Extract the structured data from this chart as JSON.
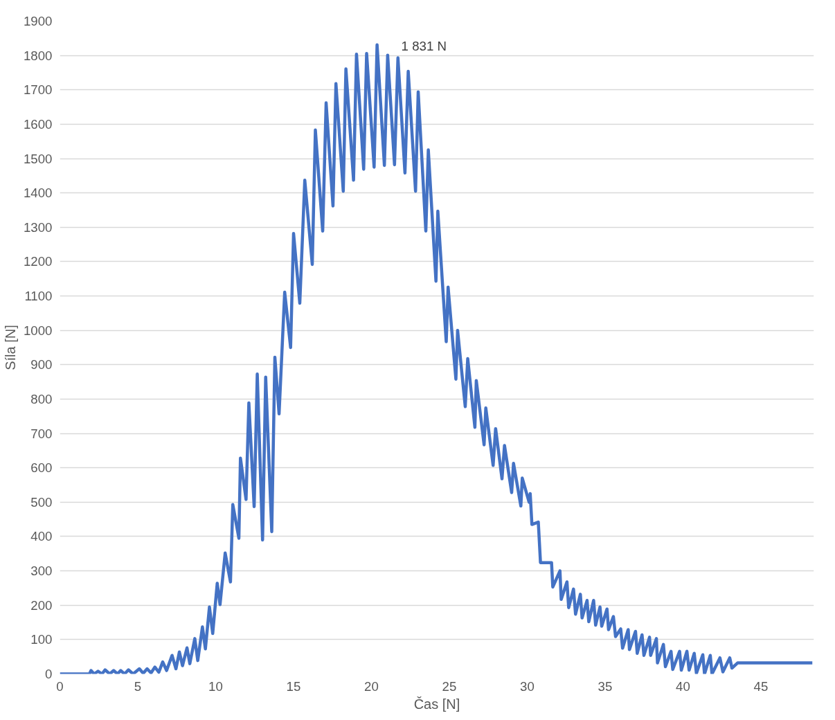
{
  "chart_data": {
    "type": "line",
    "xlabel": "Čas [N]",
    "ylabel": "Síla [N]",
    "x": [
      0,
      1.9,
      2.0,
      2.2,
      2.45,
      2.7,
      2.9,
      3.2,
      3.45,
      3.7,
      3.9,
      4.15,
      4.4,
      4.7,
      5.1,
      5.35,
      5.6,
      5.85,
      6.1,
      6.35,
      6.6,
      6.85,
      7.2,
      7.45,
      7.67,
      7.87,
      8.16,
      8.34,
      8.66,
      8.85,
      9.15,
      9.34,
      9.6,
      9.81,
      10.1,
      10.28,
      10.61,
      10.95,
      11.1,
      11.49,
      11.59,
      11.95,
      12.13,
      12.47,
      12.67,
      13.01,
      13.21,
      13.6,
      13.8,
      14.07,
      14.43,
      14.81,
      15.0,
      15.4,
      15.72,
      16.2,
      16.4,
      16.87,
      17.09,
      17.53,
      17.72,
      18.19,
      18.36,
      18.85,
      19.04,
      19.5,
      19.69,
      20.17,
      20.36,
      20.83,
      21.04,
      21.48,
      21.7,
      22.15,
      22.36,
      22.83,
      23.0,
      23.49,
      23.65,
      24.14,
      24.26,
      24.8,
      24.92,
      25.42,
      25.53,
      26.02,
      26.18,
      26.64,
      26.73,
      27.23,
      27.34,
      27.81,
      27.97,
      28.38,
      28.54,
      29.0,
      29.12,
      29.59,
      29.68,
      30.12,
      30.19,
      30.3,
      30.71,
      30.85,
      31.56,
      31.64,
      32.1,
      32.18,
      32.55,
      32.66,
      32.97,
      33.1,
      33.41,
      33.52,
      33.84,
      33.95,
      34.26,
      34.39,
      34.67,
      34.78,
      35.12,
      35.22,
      35.53,
      35.67,
      36.0,
      36.12,
      36.48,
      36.56,
      36.95,
      37.06,
      37.37,
      37.49,
      37.85,
      37.92,
      38.29,
      38.36,
      38.74,
      38.87,
      39.23,
      39.34,
      39.78,
      39.89,
      40.25,
      40.39,
      40.72,
      40.86,
      41.27,
      41.38,
      41.75,
      41.86,
      42.37,
      42.56,
      43.0,
      43.14,
      43.5,
      48.3
    ],
    "series": [
      {
        "color": "#4472c4",
        "values": [
          0,
          0,
          10,
          0,
          8,
          0,
          12,
          0,
          10,
          0,
          10,
          0,
          12,
          0,
          15,
          2,
          15,
          3,
          20,
          5,
          35,
          10,
          54,
          15,
          64,
          24,
          76,
          30,
          103,
          39,
          137,
          73,
          195,
          118,
          264,
          202,
          352,
          268,
          493,
          395,
          628,
          508,
          789,
          487,
          873,
          390,
          864,
          414,
          922,
          757,
          1111,
          950,
          1282,
          1079,
          1437,
          1192,
          1583,
          1289,
          1662,
          1362,
          1718,
          1405,
          1761,
          1437,
          1804,
          1469,
          1806,
          1475,
          1831,
          1480,
          1801,
          1482,
          1793,
          1458,
          1754,
          1405,
          1694,
          1289,
          1525,
          1143,
          1347,
          967,
          1126,
          858,
          1000,
          778,
          918,
          718,
          854,
          667,
          774,
          607,
          714,
          568,
          665,
          528,
          613,
          489,
          570,
          500,
          525,
          435,
          442,
          324,
          324,
          253,
          300,
          217,
          268,
          193,
          247,
          174,
          232,
          163,
          214,
          152,
          214,
          142,
          195,
          139,
          189,
          129,
          167,
          109,
          131,
          75,
          129,
          71,
          124,
          60,
          114,
          54,
          107,
          54,
          103,
          32,
          86,
          21,
          66,
          13,
          66,
          11,
          66,
          11,
          60,
          2,
          56,
          0,
          54,
          0,
          47,
          6,
          47,
          17,
          32,
          32
        ]
      }
    ],
    "xlim": [
      0,
      48.4
    ],
    "ylim": [
      0,
      1900
    ],
    "xticks": [
      0,
      5,
      10,
      15,
      20,
      25,
      30,
      35,
      40,
      45
    ],
    "yticks": [
      0,
      100,
      200,
      300,
      400,
      500,
      600,
      700,
      800,
      900,
      1000,
      1100,
      1200,
      1300,
      1400,
      1500,
      1600,
      1700,
      1800,
      1900
    ],
    "grid": "y",
    "marker": "none",
    "line_style": "solid",
    "annotations": [
      {
        "text": "1 831 N",
        "x": 20.36,
        "y": 1831
      }
    ]
  }
}
